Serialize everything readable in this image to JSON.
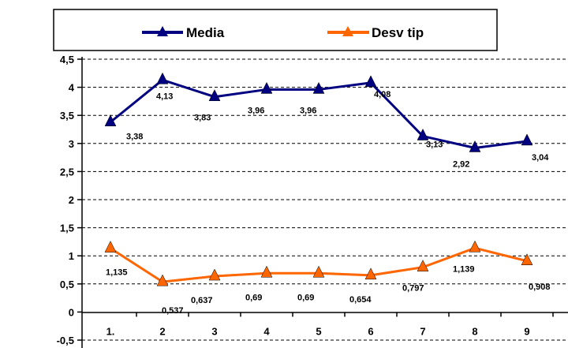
{
  "chart_data": {
    "type": "line",
    "categories": [
      "1",
      "2",
      "3",
      "4",
      "5",
      "6",
      "7",
      "8",
      "9"
    ],
    "category_labels": [
      "1.",
      "2",
      "3",
      "4",
      "5",
      "6",
      "7",
      "8",
      "9"
    ],
    "y_ticks": [
      "4,5",
      "4",
      "3,5",
      "3",
      "2,5",
      "2",
      "1,5",
      "1",
      "0,5",
      "0",
      "-0,5"
    ],
    "ylim": [
      -0.5,
      4.5
    ],
    "grid": "horizontal dashed",
    "legend_position": "top",
    "series": [
      {
        "name": "Media",
        "color": "#000080",
        "marker": "triangle",
        "values": [
          3.38,
          4.13,
          3.83,
          3.96,
          3.96,
          4.08,
          3.13,
          2.92,
          3.04
        ],
        "labels": [
          "3,38",
          "4,13",
          "3,83",
          "3,96",
          "3,96",
          "4,08",
          "3,13",
          "2,92",
          "3,04"
        ]
      },
      {
        "name": "Desv tip",
        "color": "#ff6600",
        "marker": "triangle",
        "values": [
          1.135,
          0.537,
          0.637,
          0.69,
          0.69,
          0.654,
          0.797,
          1.139,
          0.908
        ],
        "labels": [
          "1,135",
          "0,537",
          "0,637",
          "0,69",
          "0,69",
          "0,654",
          "0,797",
          "1,139",
          "0,908"
        ]
      }
    ]
  }
}
